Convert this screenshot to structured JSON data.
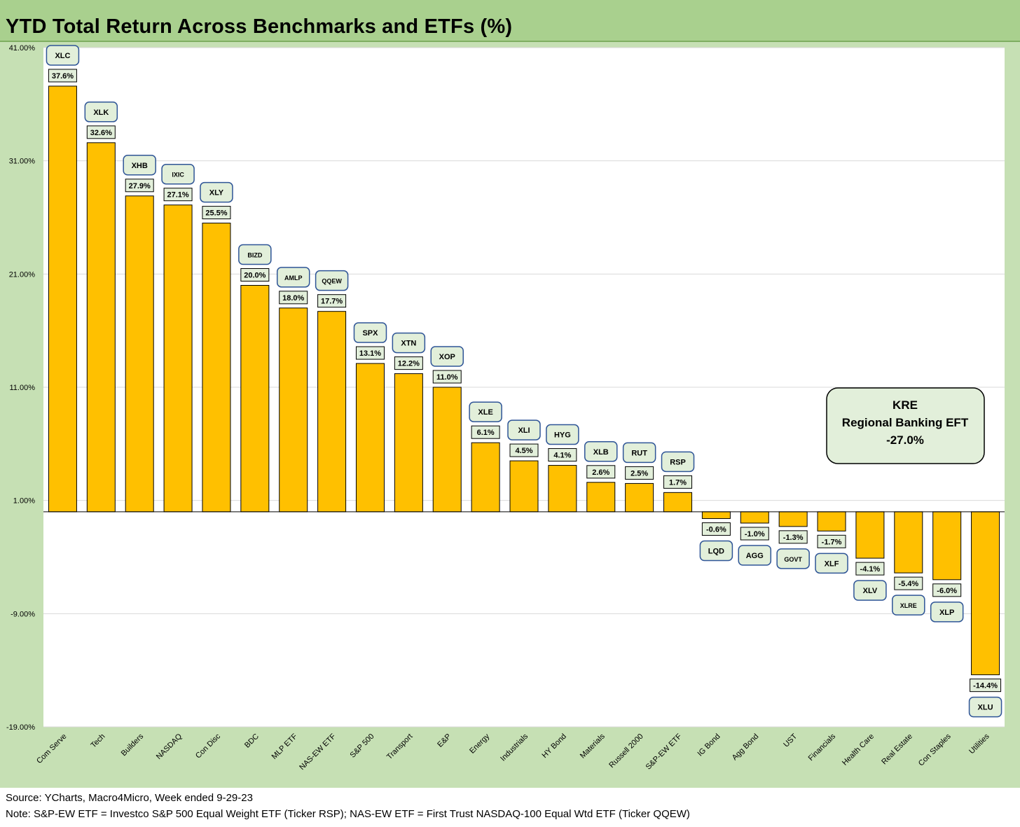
{
  "title": "YTD Total Return Across Benchmarks and ETFs (%)",
  "source": "Source: YCharts, Macro4Micro, Week ended 9-29-23",
  "note": "Note: S&P-EW ETF = Investco S&P 500 Equal Weight ETF (Ticker RSP); NAS-EW ETF = First Trust NASDAQ-100 Equal Wtd ETF (Ticker QQEW)",
  "callout": {
    "ticker": "KRE",
    "name": "Regional Banking EFT",
    "value": "-27.0%"
  },
  "colors": {
    "bar": "#ffc000",
    "title_bar": "#a9d08e",
    "panel": "#c6e0b4",
    "label_box": "#e2efda",
    "ticker_border": "#2f5597"
  },
  "chart_data": {
    "type": "bar",
    "title": "YTD Total Return Across Benchmarks and ETFs (%)",
    "xlabel": "",
    "ylabel": "",
    "ylim": [
      -19,
      41
    ],
    "yticks": [
      41,
      31,
      21,
      11,
      1,
      -9,
      -19
    ],
    "ytick_labels": [
      "41.00%",
      "31.00%",
      "21.00%",
      "11.00%",
      "1.00%",
      "-9.00%",
      "-19.00%"
    ],
    "grid": true,
    "categories": [
      "Com Serve",
      "Tech",
      "Builders",
      "NASDAQ",
      "Con Disc",
      "BDC",
      "MLP ETF",
      "NAS-EW ETF",
      "S&P 500",
      "Transport",
      "E&P",
      "Energy",
      "Industrials",
      "HY Bond",
      "Materials",
      "Russell 2000",
      "S&P-EW ETF",
      "IG Bond",
      "Agg Bond",
      "UST",
      "Financials",
      "Health Care",
      "Real Estate",
      "Con Staples",
      "Utilities"
    ],
    "tickers": [
      "XLC",
      "XLK",
      "XHB",
      "IXIC",
      "XLY",
      "BIZD",
      "AMLP",
      "QQEW",
      "SPX",
      "XTN",
      "XOP",
      "XLE",
      "XLI",
      "HYG",
      "XLB",
      "RUT",
      "RSP",
      "LQD",
      "AGG",
      "GOVT",
      "XLF",
      "XLV",
      "XLRE",
      "XLP",
      "XLU"
    ],
    "values": [
      37.6,
      32.6,
      27.9,
      27.1,
      25.5,
      20.0,
      18.0,
      17.7,
      13.1,
      12.2,
      11.0,
      6.1,
      4.5,
      4.1,
      2.6,
      2.5,
      1.7,
      -0.6,
      -1.0,
      -1.3,
      -1.7,
      -4.1,
      -5.4,
      -6.0,
      -14.4
    ],
    "value_labels": [
      "37.6%",
      "32.6%",
      "27.9%",
      "27.1%",
      "25.5%",
      "20.0%",
      "18.0%",
      "17.7%",
      "13.1%",
      "12.2%",
      "11.0%",
      "6.1%",
      "4.5%",
      "4.1%",
      "2.6%",
      "2.5%",
      "1.7%",
      "-0.6%",
      "-1.0%",
      "-1.3%",
      "-1.7%",
      "-4.1%",
      "-5.4%",
      "-6.0%",
      "-14.4%"
    ]
  }
}
